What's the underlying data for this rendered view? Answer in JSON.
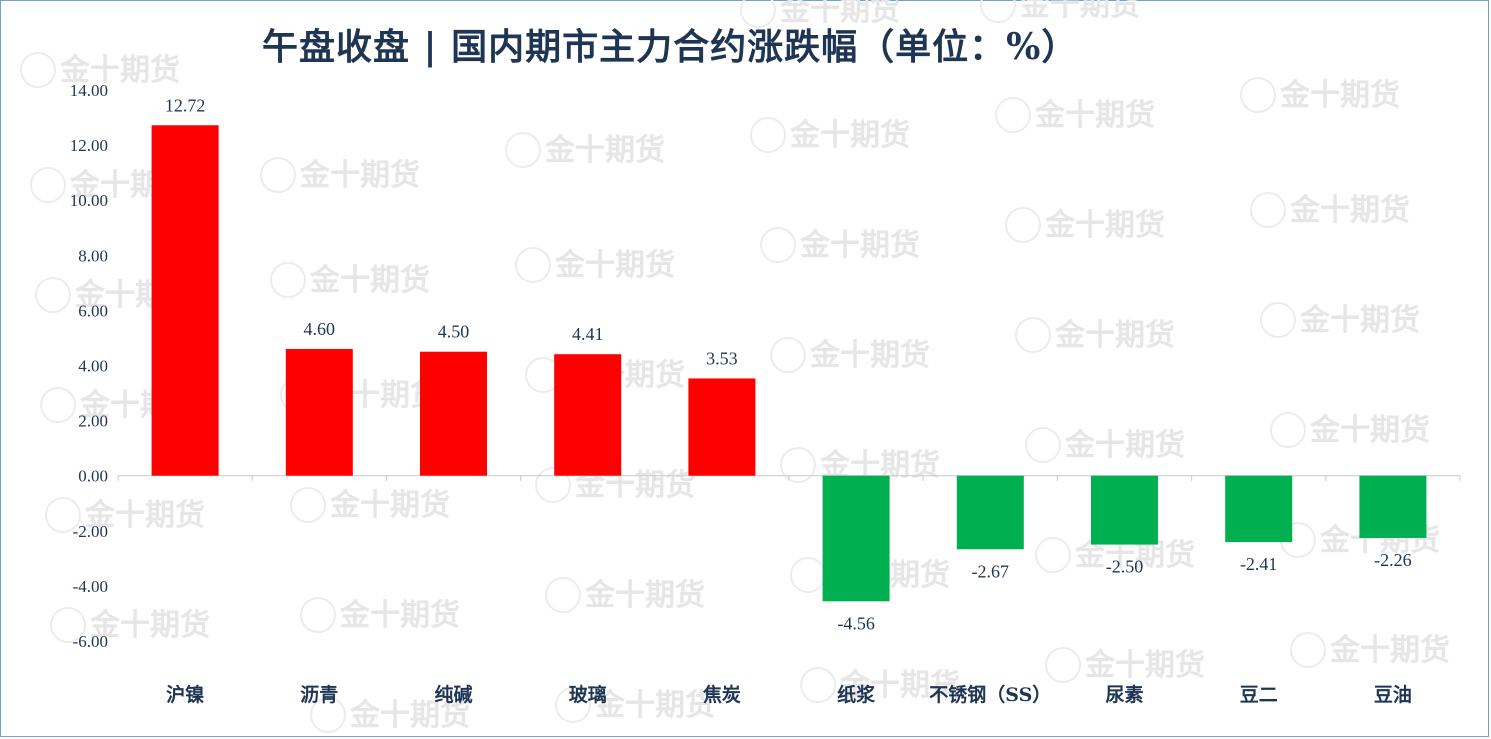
{
  "title": "午盘收盘 | 国内期市主力合约涨跌幅（单位：%）",
  "watermark": "金十期货",
  "chart_data": {
    "type": "bar",
    "title": "午盘收盘 | 国内期市主力合约涨跌幅（单位：%）",
    "categories": [
      "沪镍",
      "沥青",
      "纯碱",
      "玻璃",
      "焦炭",
      "纸浆",
      "不锈钢（SS）",
      "尿素",
      "豆二",
      "豆油"
    ],
    "values": [
      12.72,
      4.6,
      4.5,
      4.41,
      3.53,
      -4.56,
      -2.67,
      -2.5,
      -2.41,
      -2.26
    ],
    "data_labels": [
      "12.72",
      "4.60",
      "4.50",
      "4.41",
      "3.53",
      "-4.56",
      "-2.67",
      "-2.50",
      "-2.41",
      "-2.26"
    ],
    "yticks": [
      "14.00",
      "12.00",
      "10.00",
      "8.00",
      "6.00",
      "4.00",
      "2.00",
      "0.00",
      "-2.00",
      "-4.00",
      "-6.00"
    ],
    "ylim": [
      -6,
      14
    ],
    "xlabel": "",
    "ylabel": "",
    "grid": false,
    "colors": {
      "positive": "#ff0000",
      "negative": "#00b050",
      "axis": "#d0d0d0",
      "text": "#1f3554"
    }
  }
}
